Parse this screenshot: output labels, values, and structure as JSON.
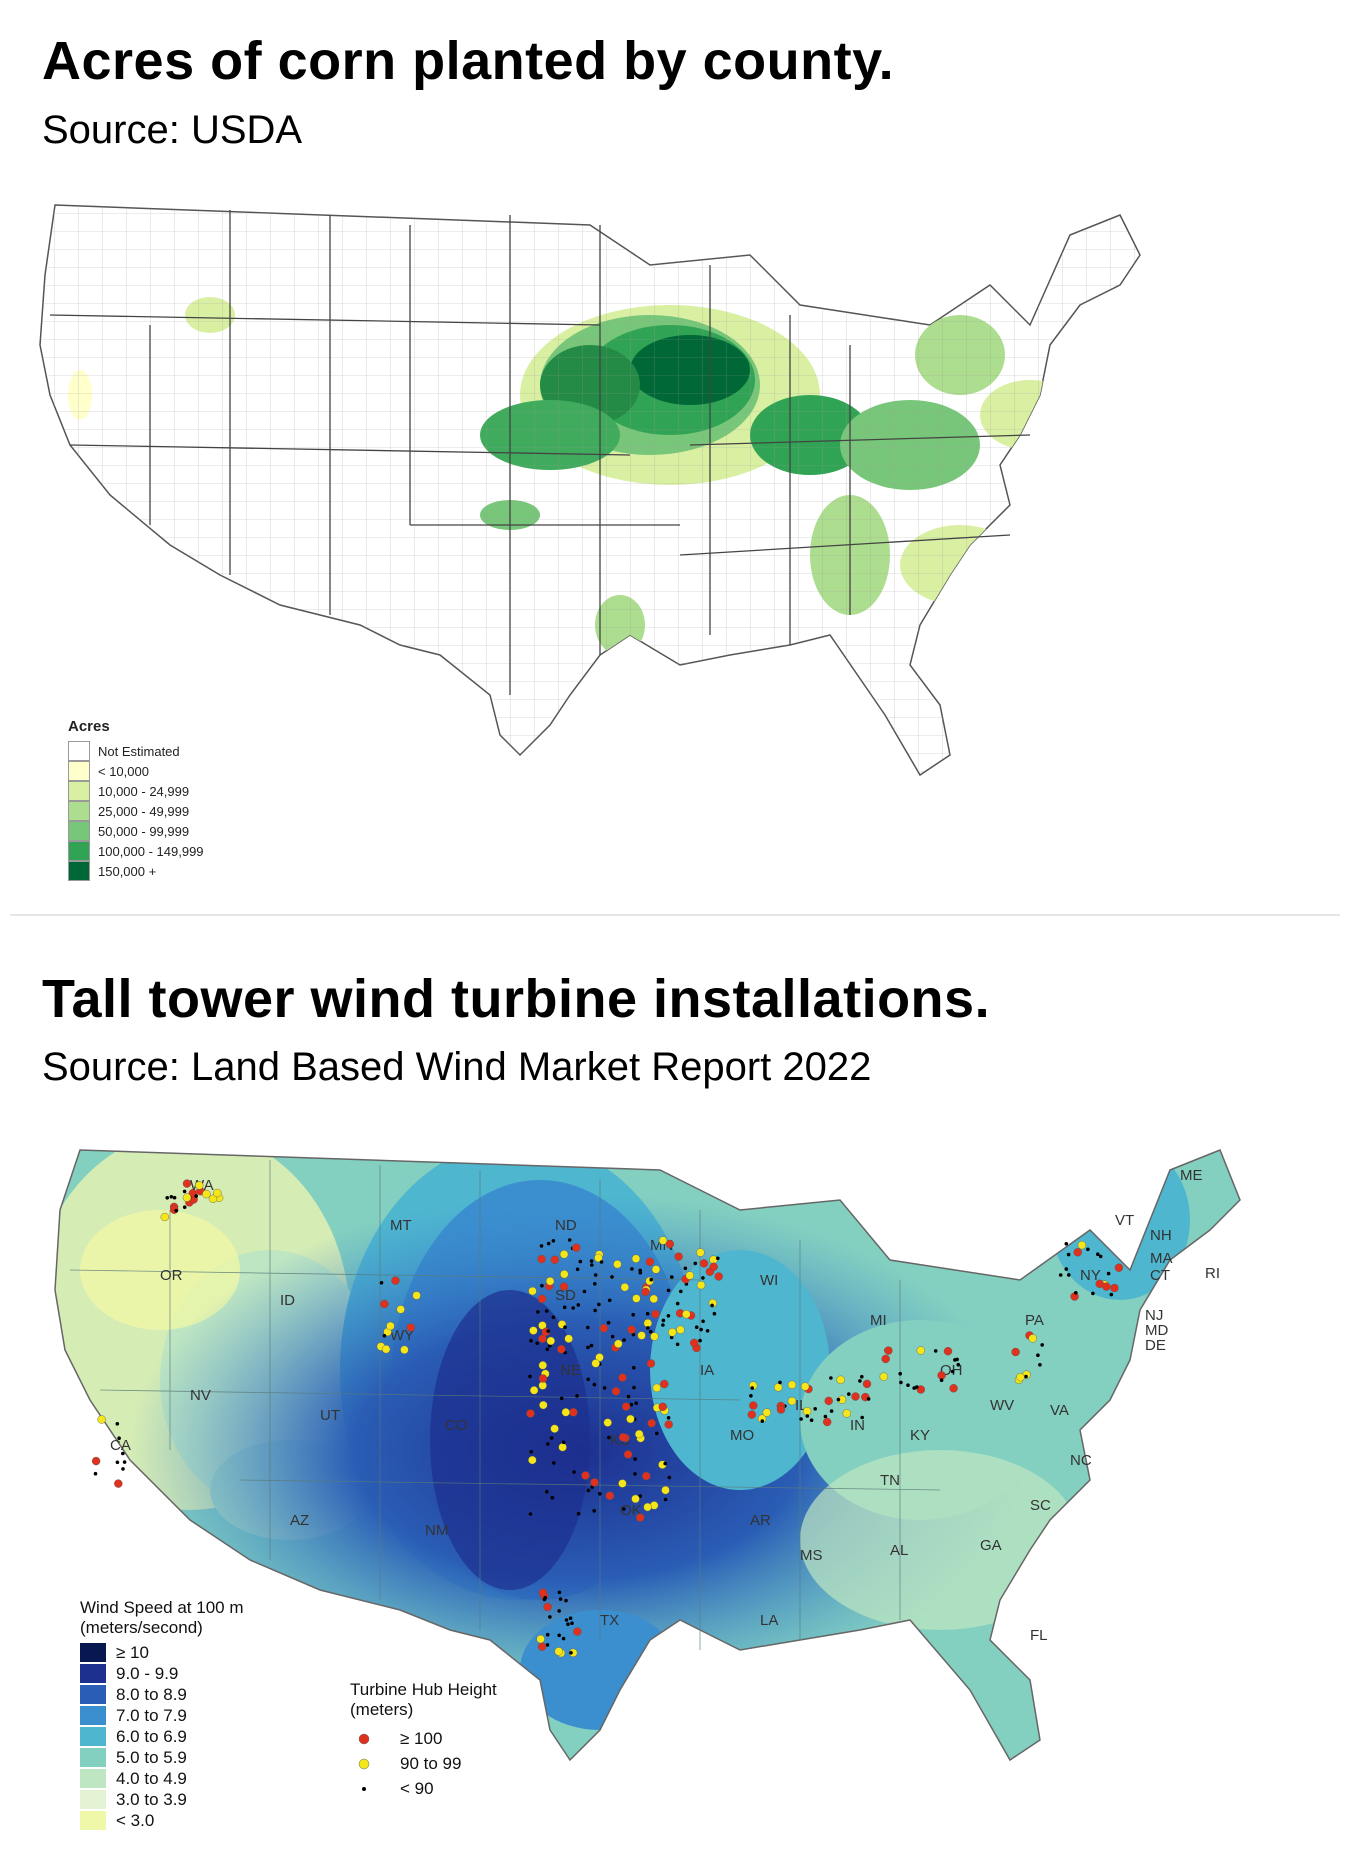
{
  "panel1": {
    "title": "Acres of corn planted by county.",
    "subtitle": "Source: USDA",
    "legend": {
      "title": "Acres",
      "items": [
        {
          "label": "Not Estimated",
          "color": "#ffffff"
        },
        {
          "label": "< 10,000",
          "color": "#ffffcc"
        },
        {
          "label": "10,000 -  24,999",
          "color": "#d9f0a3"
        },
        {
          "label": "25,000 -  49,999",
          "color": "#addd8e"
        },
        {
          "label": "50,000 -  99,999",
          "color": "#78c679"
        },
        {
          "label": "100,000 -  149,999",
          "color": "#31a354"
        },
        {
          "label": "150,000 +",
          "color": "#006837"
        }
      ]
    }
  },
  "panel2": {
    "title": "Tall tower wind turbine installations.",
    "subtitle": "Source: Land Based Wind Market Report 2022",
    "wind_legend": {
      "title_line1": "Wind Speed at 100 m",
      "title_line2": "(meters/second)",
      "items": [
        {
          "label": "≥ 10",
          "color": "#08174f"
        },
        {
          "label": "9.0 - 9.9",
          "color": "#1d2f8f"
        },
        {
          "label": "8.0 to 8.9",
          "color": "#2a5db5"
        },
        {
          "label": "7.0 to 7.9",
          "color": "#3b8fcf"
        },
        {
          "label": "6.0 to 6.9",
          "color": "#4fb6cf"
        },
        {
          "label": "5.0 to 5.9",
          "color": "#83cfc0"
        },
        {
          "label": "4.0 to 4.9",
          "color": "#bfe6c2"
        },
        {
          "label": "3.0 to 3.9",
          "color": "#e4f3d4"
        },
        {
          "label": "< 3.0",
          "color": "#eff7a8"
        }
      ]
    },
    "hub_legend": {
      "title_line1": "Turbine Hub Height",
      "title_line2": "(meters)",
      "items": [
        {
          "label": "≥ 100",
          "color": "#e0301e"
        },
        {
          "label": "90 to 99",
          "color": "#f5e61a"
        },
        {
          "label": "< 90",
          "color": "#000000"
        }
      ]
    },
    "state_labels": [
      "WA",
      "OR",
      "ID",
      "MT",
      "WY",
      "ND",
      "SD",
      "NE",
      "MN",
      "WI",
      "MI",
      "IA",
      "IL",
      "IN",
      "OH",
      "PA",
      "NY",
      "VT",
      "NH",
      "ME",
      "MA",
      "CT",
      "RI",
      "NJ",
      "MD",
      "DE",
      "WV",
      "VA",
      "NC",
      "SC",
      "GA",
      "FL",
      "AL",
      "MS",
      "TN",
      "KY",
      "MO",
      "KS",
      "OK",
      "TX",
      "NM",
      "CO",
      "UT",
      "NV",
      "CA",
      "AZ",
      "AR",
      "LA"
    ]
  }
}
